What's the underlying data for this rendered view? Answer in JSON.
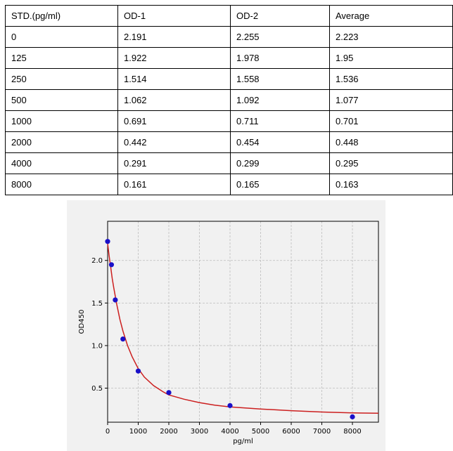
{
  "table": {
    "headers": [
      "STD.(pg/ml)",
      "OD-1",
      "OD-2",
      "Average"
    ],
    "rows": [
      [
        "0",
        "2.191",
        "2.255",
        "2.223"
      ],
      [
        "125",
        "1.922",
        "1.978",
        "1.95"
      ],
      [
        "250",
        "1.514",
        "1.558",
        "1.536"
      ],
      [
        "500",
        "1.062",
        "1.092",
        "1.077"
      ],
      [
        "1000",
        "0.691",
        "0.711",
        "0.701"
      ],
      [
        "2000",
        "0.442",
        "0.454",
        "0.448"
      ],
      [
        "4000",
        "0.291",
        "0.299",
        "0.295"
      ],
      [
        "8000",
        "0.161",
        "0.165",
        "0.163"
      ]
    ]
  },
  "chart_data": {
    "type": "scatter",
    "title": "",
    "xlabel": "pg/ml",
    "ylabel": "OD450",
    "xlim": [
      0,
      8850
    ],
    "ylim": [
      0.1,
      2.46
    ],
    "xticks": [
      0,
      1000,
      2000,
      3000,
      4000,
      5000,
      6000,
      7000,
      8000
    ],
    "yticks": [
      0.5,
      1.0,
      1.5,
      2.0
    ],
    "ytick_labels": [
      "0.5",
      "1.0",
      "1.5",
      "2.0"
    ],
    "grid": true,
    "colors": {
      "points": "#1a10c8",
      "curve": "#cc1f1f",
      "grid": "#bdbdbd"
    },
    "points": {
      "x": [
        0,
        125,
        250,
        500,
        1000,
        2000,
        4000,
        8000
      ],
      "y": [
        2.223,
        1.95,
        1.536,
        1.077,
        0.701,
        0.448,
        0.295,
        0.163
      ]
    },
    "fit_curve": {
      "x": [
        0,
        50,
        100,
        150,
        200,
        300,
        400,
        500,
        650,
        800,
        1000,
        1200,
        1500,
        1800,
        2000,
        2500,
        3000,
        3500,
        4000,
        5000,
        6000,
        7000,
        8000,
        8850
      ],
      "y": [
        2.2,
        2.05,
        1.92,
        1.79,
        1.68,
        1.48,
        1.31,
        1.17,
        1.0,
        0.87,
        0.73,
        0.63,
        0.53,
        0.46,
        0.42,
        0.37,
        0.33,
        0.3,
        0.28,
        0.255,
        0.235,
        0.22,
        0.21,
        0.205
      ]
    }
  }
}
